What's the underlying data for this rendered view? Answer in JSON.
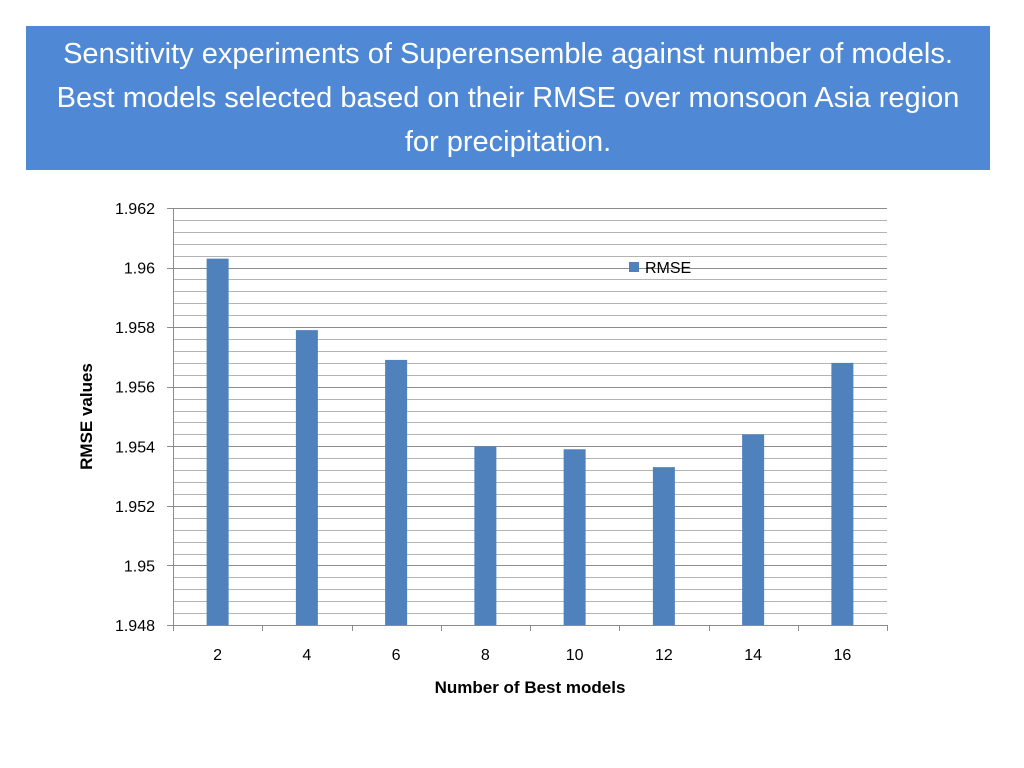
{
  "slide": {
    "title": "Sensitivity experiments of Superensemble against number of models. Best models selected based on their RMSE over monsoon Asia region for precipitation."
  },
  "colors": {
    "banner": "#4f88d4",
    "bar": "#4f81bd",
    "grid": "#a0a0a0"
  },
  "chart_data": {
    "type": "bar",
    "categories": [
      "2",
      "4",
      "6",
      "8",
      "10",
      "12",
      "14",
      "16"
    ],
    "series": [
      {
        "name": "RMSE",
        "values": [
          1.9603,
          1.9579,
          1.9569,
          1.954,
          1.9539,
          1.9533,
          1.9544,
          1.9568
        ]
      }
    ],
    "xlabel": "Number of Best models",
    "ylabel": "RMSE values",
    "ylim": [
      1.948,
      1.962
    ],
    "yticks": [
      1.948,
      1.95,
      1.952,
      1.954,
      1.956,
      1.958,
      1.96,
      1.962
    ],
    "ytick_labels": [
      "1.948",
      "1.95",
      "1.952",
      "1.954",
      "1.956",
      "1.958",
      "1.96",
      "1.962"
    ],
    "grid": true,
    "legend_position": "top-right"
  }
}
